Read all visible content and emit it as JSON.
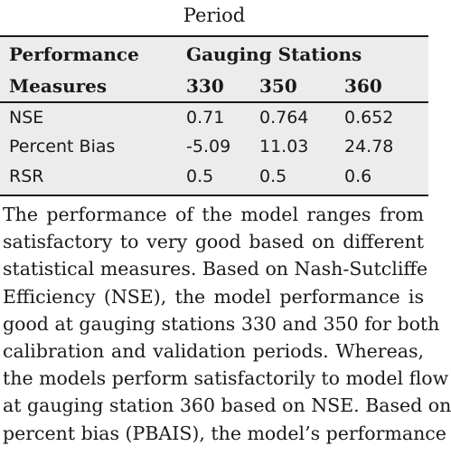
{
  "caption": "Period",
  "table": {
    "header": {
      "col1_line1": "Performance",
      "col1_line2": "Measures",
      "group_label": "Gauging Stations",
      "stations": [
        "330",
        "350",
        "360"
      ]
    },
    "rows": [
      {
        "measure": "NSE",
        "values": [
          "0.71",
          "0.764",
          "0.652"
        ]
      },
      {
        "measure": "Percent Bias",
        "values": [
          "-5.09",
          "11.03",
          "24.78"
        ]
      },
      {
        "measure": "RSR",
        "values": [
          "0.5",
          "0.5",
          "0.6"
        ]
      }
    ]
  },
  "paragraph_lines": [
    "The performance of the model ranges from",
    "satisfactory to very good based on different",
    "statistical measures. Based on Nash-Sutcliffe",
    "Efficiency (NSE), the model performance is",
    "good at gauging stations 330 and 350 for both",
    "calibration and validation periods. Whereas,",
    "the models perform satisfactorily to model flow",
    "at gauging station 360 based on NSE. Based on",
    "percent bias (PBAIS), the model’s performance"
  ]
}
